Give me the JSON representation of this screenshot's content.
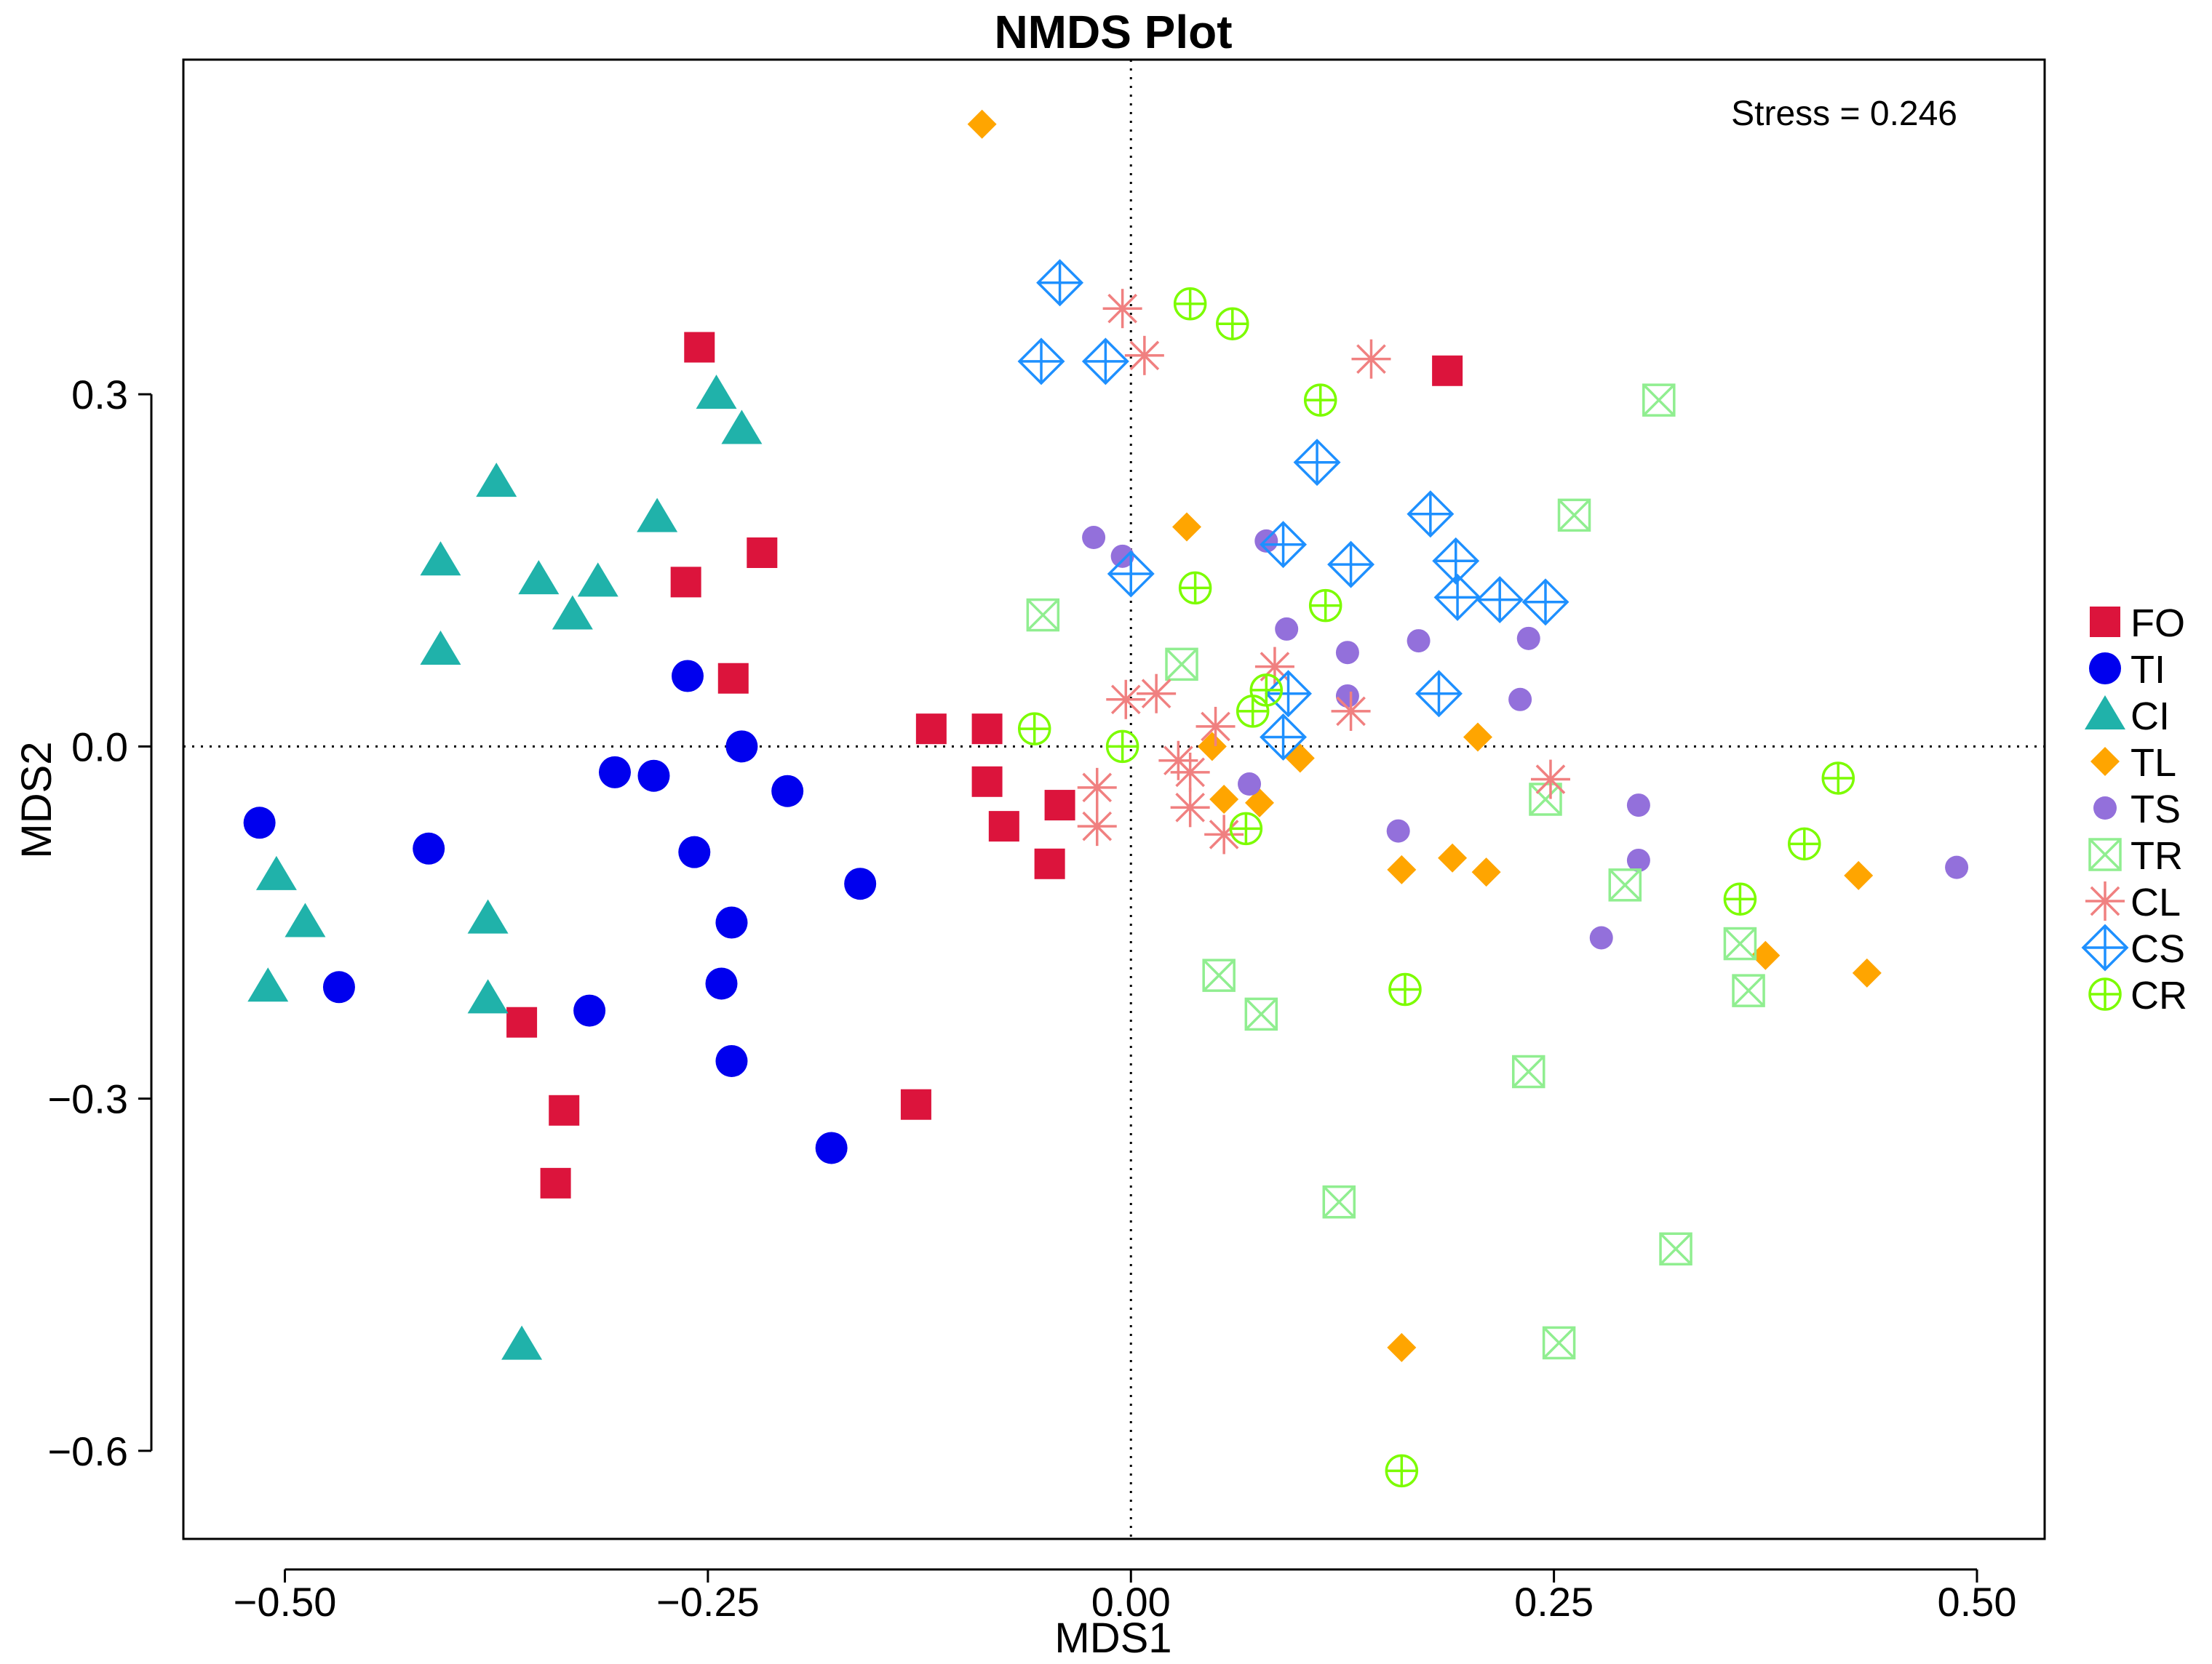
{
  "chart_data": {
    "type": "scatter",
    "title": "NMDS Plot",
    "xlabel": "MDS1",
    "ylabel": "MDS2",
    "xlim": [
      -0.56,
      0.54
    ],
    "ylim": [
      -0.675,
      0.585
    ],
    "xticks": [
      -0.5,
      -0.25,
      0.0,
      0.25,
      0.5
    ],
    "xtick_labels": [
      "−0.50",
      "−0.25",
      "0.00",
      "0.25",
      "0.50"
    ],
    "yticks": [
      -0.6,
      -0.3,
      0.0,
      0.3
    ],
    "ytick_labels": [
      "−0.6",
      "−0.3",
      "0.0",
      "0.3"
    ],
    "reference_lines": {
      "x": 0.0,
      "y": 0.0,
      "style": "dotted"
    },
    "annotation": "Stress = 0.246",
    "legend_position": "right",
    "series": [
      {
        "name": "FO",
        "marker": "square",
        "color": "#DC143C",
        "points": [
          [
            -0.255,
            0.34
          ],
          [
            -0.218,
            0.165
          ],
          [
            -0.263,
            0.14
          ],
          [
            -0.235,
            0.058
          ],
          [
            -0.118,
            0.015
          ],
          [
            -0.085,
            0.015
          ],
          [
            -0.085,
            -0.03
          ],
          [
            -0.075,
            -0.068
          ],
          [
            -0.042,
            -0.05
          ],
          [
            -0.048,
            -0.1
          ],
          [
            -0.36,
            -0.235
          ],
          [
            -0.335,
            -0.31
          ],
          [
            -0.34,
            -0.372
          ],
          [
            -0.127,
            -0.305
          ],
          [
            0.187,
            0.32
          ]
        ]
      },
      {
        "name": "TI",
        "marker": "circle",
        "color": "#0000EE",
        "points": [
          [
            -0.262,
            0.06
          ],
          [
            -0.23,
            0.0
          ],
          [
            -0.305,
            -0.022
          ],
          [
            -0.282,
            -0.025
          ],
          [
            -0.203,
            -0.038
          ],
          [
            -0.515,
            -0.065
          ],
          [
            -0.415,
            -0.087
          ],
          [
            -0.258,
            -0.09
          ],
          [
            -0.16,
            -0.117
          ],
          [
            -0.236,
            -0.15
          ],
          [
            -0.468,
            -0.205
          ],
          [
            -0.242,
            -0.202
          ],
          [
            -0.32,
            -0.225
          ],
          [
            -0.236,
            -0.268
          ],
          [
            -0.177,
            -0.342
          ]
        ]
      },
      {
        "name": "CI",
        "marker": "triangle",
        "color": "#20B2AA",
        "points": [
          [
            -0.245,
            0.3
          ],
          [
            -0.23,
            0.27
          ],
          [
            -0.375,
            0.225
          ],
          [
            -0.28,
            0.195
          ],
          [
            -0.408,
            0.158
          ],
          [
            -0.35,
            0.142
          ],
          [
            -0.315,
            0.14
          ],
          [
            -0.33,
            0.112
          ],
          [
            -0.408,
            0.082
          ],
          [
            -0.505,
            -0.11
          ],
          [
            -0.488,
            -0.15
          ],
          [
            -0.51,
            -0.205
          ],
          [
            -0.38,
            -0.147
          ],
          [
            -0.38,
            -0.215
          ],
          [
            -0.36,
            -0.51
          ]
        ]
      },
      {
        "name": "TL",
        "marker": "diamond",
        "color": "#FFA500",
        "points": [
          [
            -0.088,
            0.53
          ],
          [
            0.033,
            0.187
          ],
          [
            0.048,
            0.0
          ],
          [
            0.1,
            -0.01
          ],
          [
            0.205,
            0.008
          ],
          [
            0.055,
            -0.045
          ],
          [
            0.076,
            -0.048
          ],
          [
            0.16,
            -0.105
          ],
          [
            0.19,
            -0.095
          ],
          [
            0.21,
            -0.107
          ],
          [
            0.375,
            -0.178
          ],
          [
            0.43,
            -0.11
          ],
          [
            0.435,
            -0.193
          ],
          [
            0.16,
            -0.512
          ]
        ]
      },
      {
        "name": "TS",
        "marker": "small-circle",
        "color": "#9370DB",
        "points": [
          [
            -0.022,
            0.178
          ],
          [
            -0.005,
            0.162
          ],
          [
            0.08,
            0.175
          ],
          [
            0.092,
            0.1
          ],
          [
            0.128,
            0.08
          ],
          [
            0.17,
            0.09
          ],
          [
            0.235,
            0.092
          ],
          [
            0.128,
            0.043
          ],
          [
            0.23,
            0.04
          ],
          [
            0.07,
            -0.032
          ],
          [
            0.158,
            -0.072
          ],
          [
            0.3,
            -0.05
          ],
          [
            0.3,
            -0.097
          ],
          [
            0.278,
            -0.163
          ],
          [
            0.488,
            -0.103
          ]
        ]
      },
      {
        "name": "TR",
        "marker": "square-x",
        "color": "#90EE90",
        "points": [
          [
            0.312,
            0.295
          ],
          [
            0.262,
            0.197
          ],
          [
            -0.052,
            0.112
          ],
          [
            0.03,
            0.07
          ],
          [
            0.245,
            -0.045
          ],
          [
            0.292,
            -0.118
          ],
          [
            0.052,
            -0.195
          ],
          [
            0.077,
            -0.228
          ],
          [
            0.36,
            -0.168
          ],
          [
            0.365,
            -0.208
          ],
          [
            0.235,
            -0.277
          ],
          [
            0.123,
            -0.388
          ],
          [
            0.322,
            -0.428
          ],
          [
            0.253,
            -0.508
          ]
        ]
      },
      {
        "name": "CL",
        "marker": "asterisk",
        "color": "#F08080",
        "points": [
          [
            -0.005,
            0.373
          ],
          [
            0.008,
            0.333
          ],
          [
            0.142,
            0.33
          ],
          [
            0.085,
            0.068
          ],
          [
            0.015,
            0.045
          ],
          [
            -0.003,
            0.04
          ],
          [
            0.05,
            0.017
          ],
          [
            0.13,
            0.03
          ],
          [
            0.028,
            -0.012
          ],
          [
            0.035,
            -0.022
          ],
          [
            -0.02,
            -0.035
          ],
          [
            0.035,
            -0.052
          ],
          [
            -0.02,
            -0.068
          ],
          [
            0.055,
            -0.075
          ],
          [
            0.248,
            -0.028
          ]
        ]
      },
      {
        "name": "CS",
        "marker": "diamond-plus",
        "color": "#1E90FF",
        "points": [
          [
            -0.042,
            0.395
          ],
          [
            -0.053,
            0.328
          ],
          [
            -0.015,
            0.328
          ],
          [
            0.11,
            0.242
          ],
          [
            0.177,
            0.198
          ],
          [
            0.09,
            0.172
          ],
          [
            0.13,
            0.155
          ],
          [
            0.192,
            0.158
          ],
          [
            0.193,
            0.127
          ],
          [
            0.218,
            0.125
          ],
          [
            0.245,
            0.123
          ],
          [
            0.0,
            0.147
          ],
          [
            0.093,
            0.045
          ],
          [
            0.182,
            0.045
          ],
          [
            0.09,
            0.008
          ]
        ]
      },
      {
        "name": "CR",
        "marker": "circle-plus",
        "color": "#7CFC00",
        "points": [
          [
            0.035,
            0.377
          ],
          [
            0.06,
            0.36
          ],
          [
            0.112,
            0.295
          ],
          [
            0.038,
            0.135
          ],
          [
            0.115,
            0.12
          ],
          [
            -0.057,
            0.015
          ],
          [
            -0.005,
            0.0
          ],
          [
            0.072,
            0.03
          ],
          [
            0.08,
            0.048
          ],
          [
            0.068,
            -0.07
          ],
          [
            0.418,
            -0.027
          ],
          [
            0.398,
            -0.083
          ],
          [
            0.36,
            -0.13
          ],
          [
            0.162,
            -0.207
          ],
          [
            0.16,
            -0.617
          ]
        ]
      }
    ]
  }
}
